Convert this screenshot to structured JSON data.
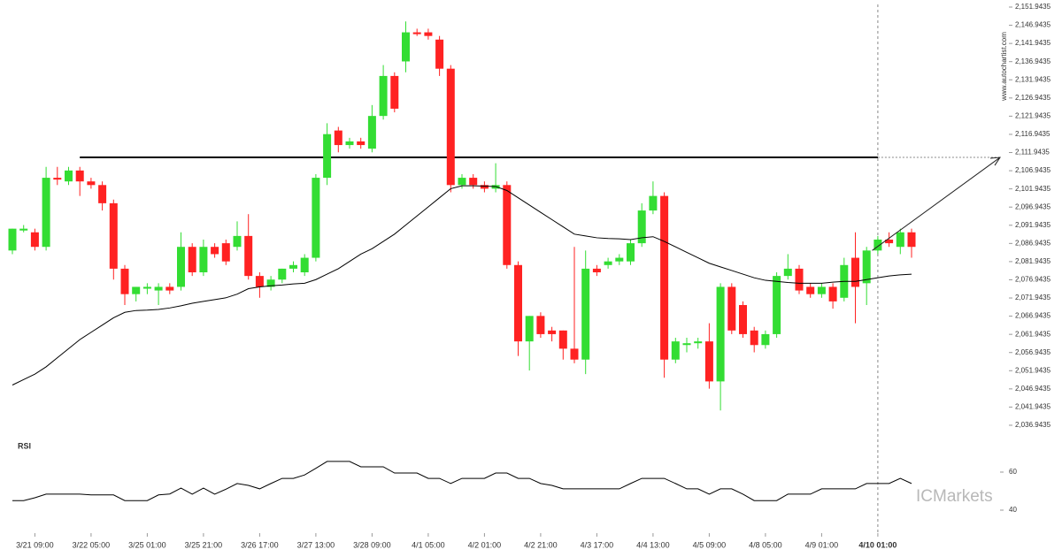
{
  "chart_data": {
    "type": "candlestick",
    "up_color": "#33dd33",
    "down_color": "#ff2222",
    "open": [
      2085,
      2090.5,
      2090,
      2086,
      2105,
      2104,
      2107,
      2104,
      2103,
      2098,
      2080,
      2073,
      2074.5,
      2074,
      2075,
      2075,
      2086,
      2079,
      2086,
      2087,
      2086,
      2089,
      2078,
      2075,
      2077,
      2080,
      2079,
      2083,
      2105,
      2118,
      2114,
      2115,
      2113,
      2122,
      2133,
      2137,
      2145,
      2145,
      2143,
      2135,
      2103,
      2105,
      2103,
      2102,
      2103,
      2081,
      2060,
      2067,
      2063,
      2063,
      2058,
      2055,
      2080,
      2081,
      2082,
      2082,
      2087,
      2096,
      2100,
      2055,
      2059,
      2059.5,
      2060,
      2049,
      2075,
      2070,
      2063,
      2059,
      2062,
      2078,
      2080,
      2075,
      2073,
      2075,
      2072,
      2083,
      2076,
      2085,
      2088,
      2086,
      2090
    ],
    "high": [
      2091,
      2092,
      2091,
      2108,
      2108,
      2108,
      2108,
      2105,
      2104,
      2099,
      2081,
      2075,
      2076,
      2076,
      2076,
      2090,
      2087,
      2088,
      2087,
      2088,
      2093,
      2095,
      2079,
      2078,
      2080,
      2082,
      2084,
      2106,
      2120,
      2119,
      2116,
      2116,
      2125,
      2136,
      2134,
      2148,
      2146,
      2146,
      2144,
      2136,
      2106,
      2106,
      2104,
      2109,
      2104,
      2082,
      2067,
      2068,
      2064,
      2063,
      2086,
      2085,
      2081,
      2083,
      2084,
      2088,
      2098,
      2104,
      2101,
      2061,
      2061,
      2061,
      2065,
      2076,
      2076,
      2071,
      2064,
      2063,
      2079,
      2084,
      2081,
      2076,
      2076,
      2076,
      2083,
      2090,
      2086,
      2089,
      2090,
      2091,
      2091
    ],
    "low": [
      2084,
      2090,
      2085,
      2085,
      2103,
      2103,
      2100,
      2102,
      2096,
      2077,
      2070,
      2071,
      2073,
      2070,
      2073,
      2074,
      2078,
      2078,
      2083,
      2081,
      2085,
      2077,
      2072,
      2074,
      2076,
      2079,
      2078,
      2082,
      2103,
      2112,
      2113,
      2113,
      2112,
      2121,
      2123,
      2134,
      2144,
      2143,
      2133,
      2101,
      2102,
      2102,
      2101,
      2101,
      2080,
      2056,
      2052,
      2061,
      2060,
      2055,
      2054,
      2051,
      2078,
      2080,
      2081,
      2081,
      2086,
      2095,
      2050,
      2054,
      2057,
      2058,
      2047,
      2041,
      2062,
      2061,
      2057,
      2058,
      2061,
      2077,
      2073,
      2072,
      2072,
      2069,
      2071,
      2065,
      2070,
      2084,
      2086,
      2084,
      2083
    ],
    "close": [
      2091,
      2091,
      2086,
      2105,
      2104.5,
      2107,
      2104,
      2103,
      2098,
      2080,
      2073,
      2075,
      2075,
      2075,
      2074,
      2086,
      2079,
      2086,
      2084,
      2082,
      2089,
      2078,
      2075,
      2077,
      2080,
      2081,
      2083,
      2105,
      2117,
      2114,
      2115,
      2114,
      2122,
      2133,
      2124,
      2145,
      2144.5,
      2144,
      2135,
      2103,
      2105,
      2103,
      2102,
      2103,
      2081,
      2060,
      2067,
      2062,
      2062,
      2058,
      2055,
      2080,
      2079,
      2082,
      2083,
      2087,
      2096,
      2100,
      2055,
      2060,
      2059.5,
      2060,
      2049,
      2075,
      2063,
      2062,
      2059,
      2062,
      2078,
      2080,
      2074,
      2073,
      2075,
      2071,
      2081,
      2075,
      2085,
      2088,
      2087,
      2090,
      2086
    ],
    "ma": [
      2048,
      2049.5,
      2051,
      2053,
      2055.5,
      2058,
      2060.5,
      2062.5,
      2064.5,
      2066.5,
      2068,
      2068.5,
      2068.6,
      2068.8,
      2069.2,
      2069.8,
      2070.5,
      2071,
      2071.5,
      2072,
      2073,
      2074.5,
      2075,
      2075.3,
      2075.5,
      2075.8,
      2076,
      2077,
      2078.5,
      2080,
      2082,
      2084,
      2085.5,
      2087.5,
      2089.5,
      2092,
      2094.5,
      2097,
      2099.5,
      2102,
      2102.8,
      2102.8,
      2102.7,
      2102.6,
      2101.5,
      2099.5,
      2097.5,
      2095.5,
      2093.5,
      2091.5,
      2089.5,
      2089,
      2088.5,
      2088.3,
      2088.2,
      2088,
      2088.5,
      2088.8,
      2087.5,
      2086,
      2084.5,
      2083,
      2081.5,
      2080.5,
      2079.5,
      2078.5,
      2077.5,
      2076.8,
      2076.5,
      2076.2,
      2076,
      2076,
      2076,
      2076.3,
      2076.5,
      2076.5,
      2077,
      2077.5,
      2078,
      2078.3,
      2078.5
    ],
    "level": 2110.6,
    "ylim": [
      2034.75,
      2153.89
    ],
    "yticks": [
      {
        "value": 2036.9435,
        "label": "2,036.9435"
      },
      {
        "value": 2041.9435,
        "label": "2,041.9435"
      },
      {
        "value": 2046.9435,
        "label": "2,046.9435"
      },
      {
        "value": 2051.9435,
        "label": "2,051.9435"
      },
      {
        "value": 2056.9435,
        "label": "2,056.9435"
      },
      {
        "value": 2061.9435,
        "label": "2,061.9435"
      },
      {
        "value": 2066.9435,
        "label": "2,066.9435"
      },
      {
        "value": 2071.9435,
        "label": "2,071.9435"
      },
      {
        "value": 2076.9435,
        "label": "2,076.9435"
      },
      {
        "value": 2081.9435,
        "label": "2,081.9435"
      },
      {
        "value": 2086.9435,
        "label": "2,086.9435"
      },
      {
        "value": 2091.9435,
        "label": "2,091.9435"
      },
      {
        "value": 2096.9435,
        "label": "2,096.9435"
      },
      {
        "value": 2101.9435,
        "label": "2,101.9435"
      },
      {
        "value": 2106.9435,
        "label": "2,106.9435"
      },
      {
        "value": 2111.9435,
        "label": "2,111.9435"
      },
      {
        "value": 2116.9435,
        "label": "2,116.9435"
      },
      {
        "value": 2121.9435,
        "label": "2,121.9435"
      },
      {
        "value": 2126.9435,
        "label": "2,126.9435"
      },
      {
        "value": 2131.9435,
        "label": "2,131.9435"
      },
      {
        "value": 2136.9435,
        "label": "2,136.9435"
      },
      {
        "value": 2141.9435,
        "label": "2,141.9435"
      },
      {
        "value": 2146.9435,
        "label": "2,146.9435"
      },
      {
        "value": 2151.9435,
        "label": "2,151.9435"
      }
    ],
    "xticks": [
      {
        "value": 2,
        "label": "3/21 09:00"
      },
      {
        "value": 7,
        "label": "3/22 05:00"
      },
      {
        "value": 12,
        "label": "3/25 01:00"
      },
      {
        "value": 17,
        "label": "3/25 21:00"
      },
      {
        "value": 22,
        "label": "3/26 17:00"
      },
      {
        "value": 27,
        "label": "3/27 13:00"
      },
      {
        "value": 32,
        "label": "3/28 09:00"
      },
      {
        "value": 37,
        "label": "4/1 05:00"
      },
      {
        "value": 42,
        "label": "4/2 01:00"
      },
      {
        "value": 47,
        "label": "4/2 21:00"
      },
      {
        "value": 52,
        "label": "4/3 17:00"
      },
      {
        "value": 57,
        "label": "4/4 13:00"
      },
      {
        "value": 62,
        "label": "4/5 09:00"
      },
      {
        "value": 67,
        "label": "4/8 05:00"
      },
      {
        "value": 72,
        "label": "4/9 01:00"
      },
      {
        "value": 77,
        "label": "4/10 01:00"
      }
    ],
    "rsi": {
      "title": "RSI",
      "values": [
        45,
        45,
        46.5,
        48.4,
        48.4,
        48.4,
        48.4,
        48,
        48,
        48,
        45,
        45,
        45,
        48,
        48.5,
        51.6,
        48.4,
        51.6,
        48.4,
        51,
        54,
        53,
        51.2,
        54,
        56.7,
        56.7,
        58.5,
        62,
        65.6,
        65.6,
        65.6,
        62.8,
        62.8,
        62.8,
        59.5,
        59.5,
        59.5,
        56.7,
        56.7,
        54,
        56.7,
        56.7,
        56.7,
        59.5,
        59.5,
        56.7,
        56.7,
        54,
        53,
        51.2,
        51.2,
        51.2,
        51.2,
        51.2,
        51.2,
        54,
        56.7,
        56.7,
        56.7,
        54,
        51.2,
        51.2,
        48.4,
        51.2,
        51.2,
        48.4,
        45,
        45,
        45,
        48.4,
        48.4,
        48.4,
        51.2,
        51.2,
        51.2,
        51.2,
        54,
        54,
        54,
        56.7,
        54
      ],
      "ylim": [
        29.3,
        75.8
      ],
      "yticks": [
        40,
        60
      ]
    },
    "source": "www.autochartist.com",
    "watermark": "ICMarkets"
  }
}
